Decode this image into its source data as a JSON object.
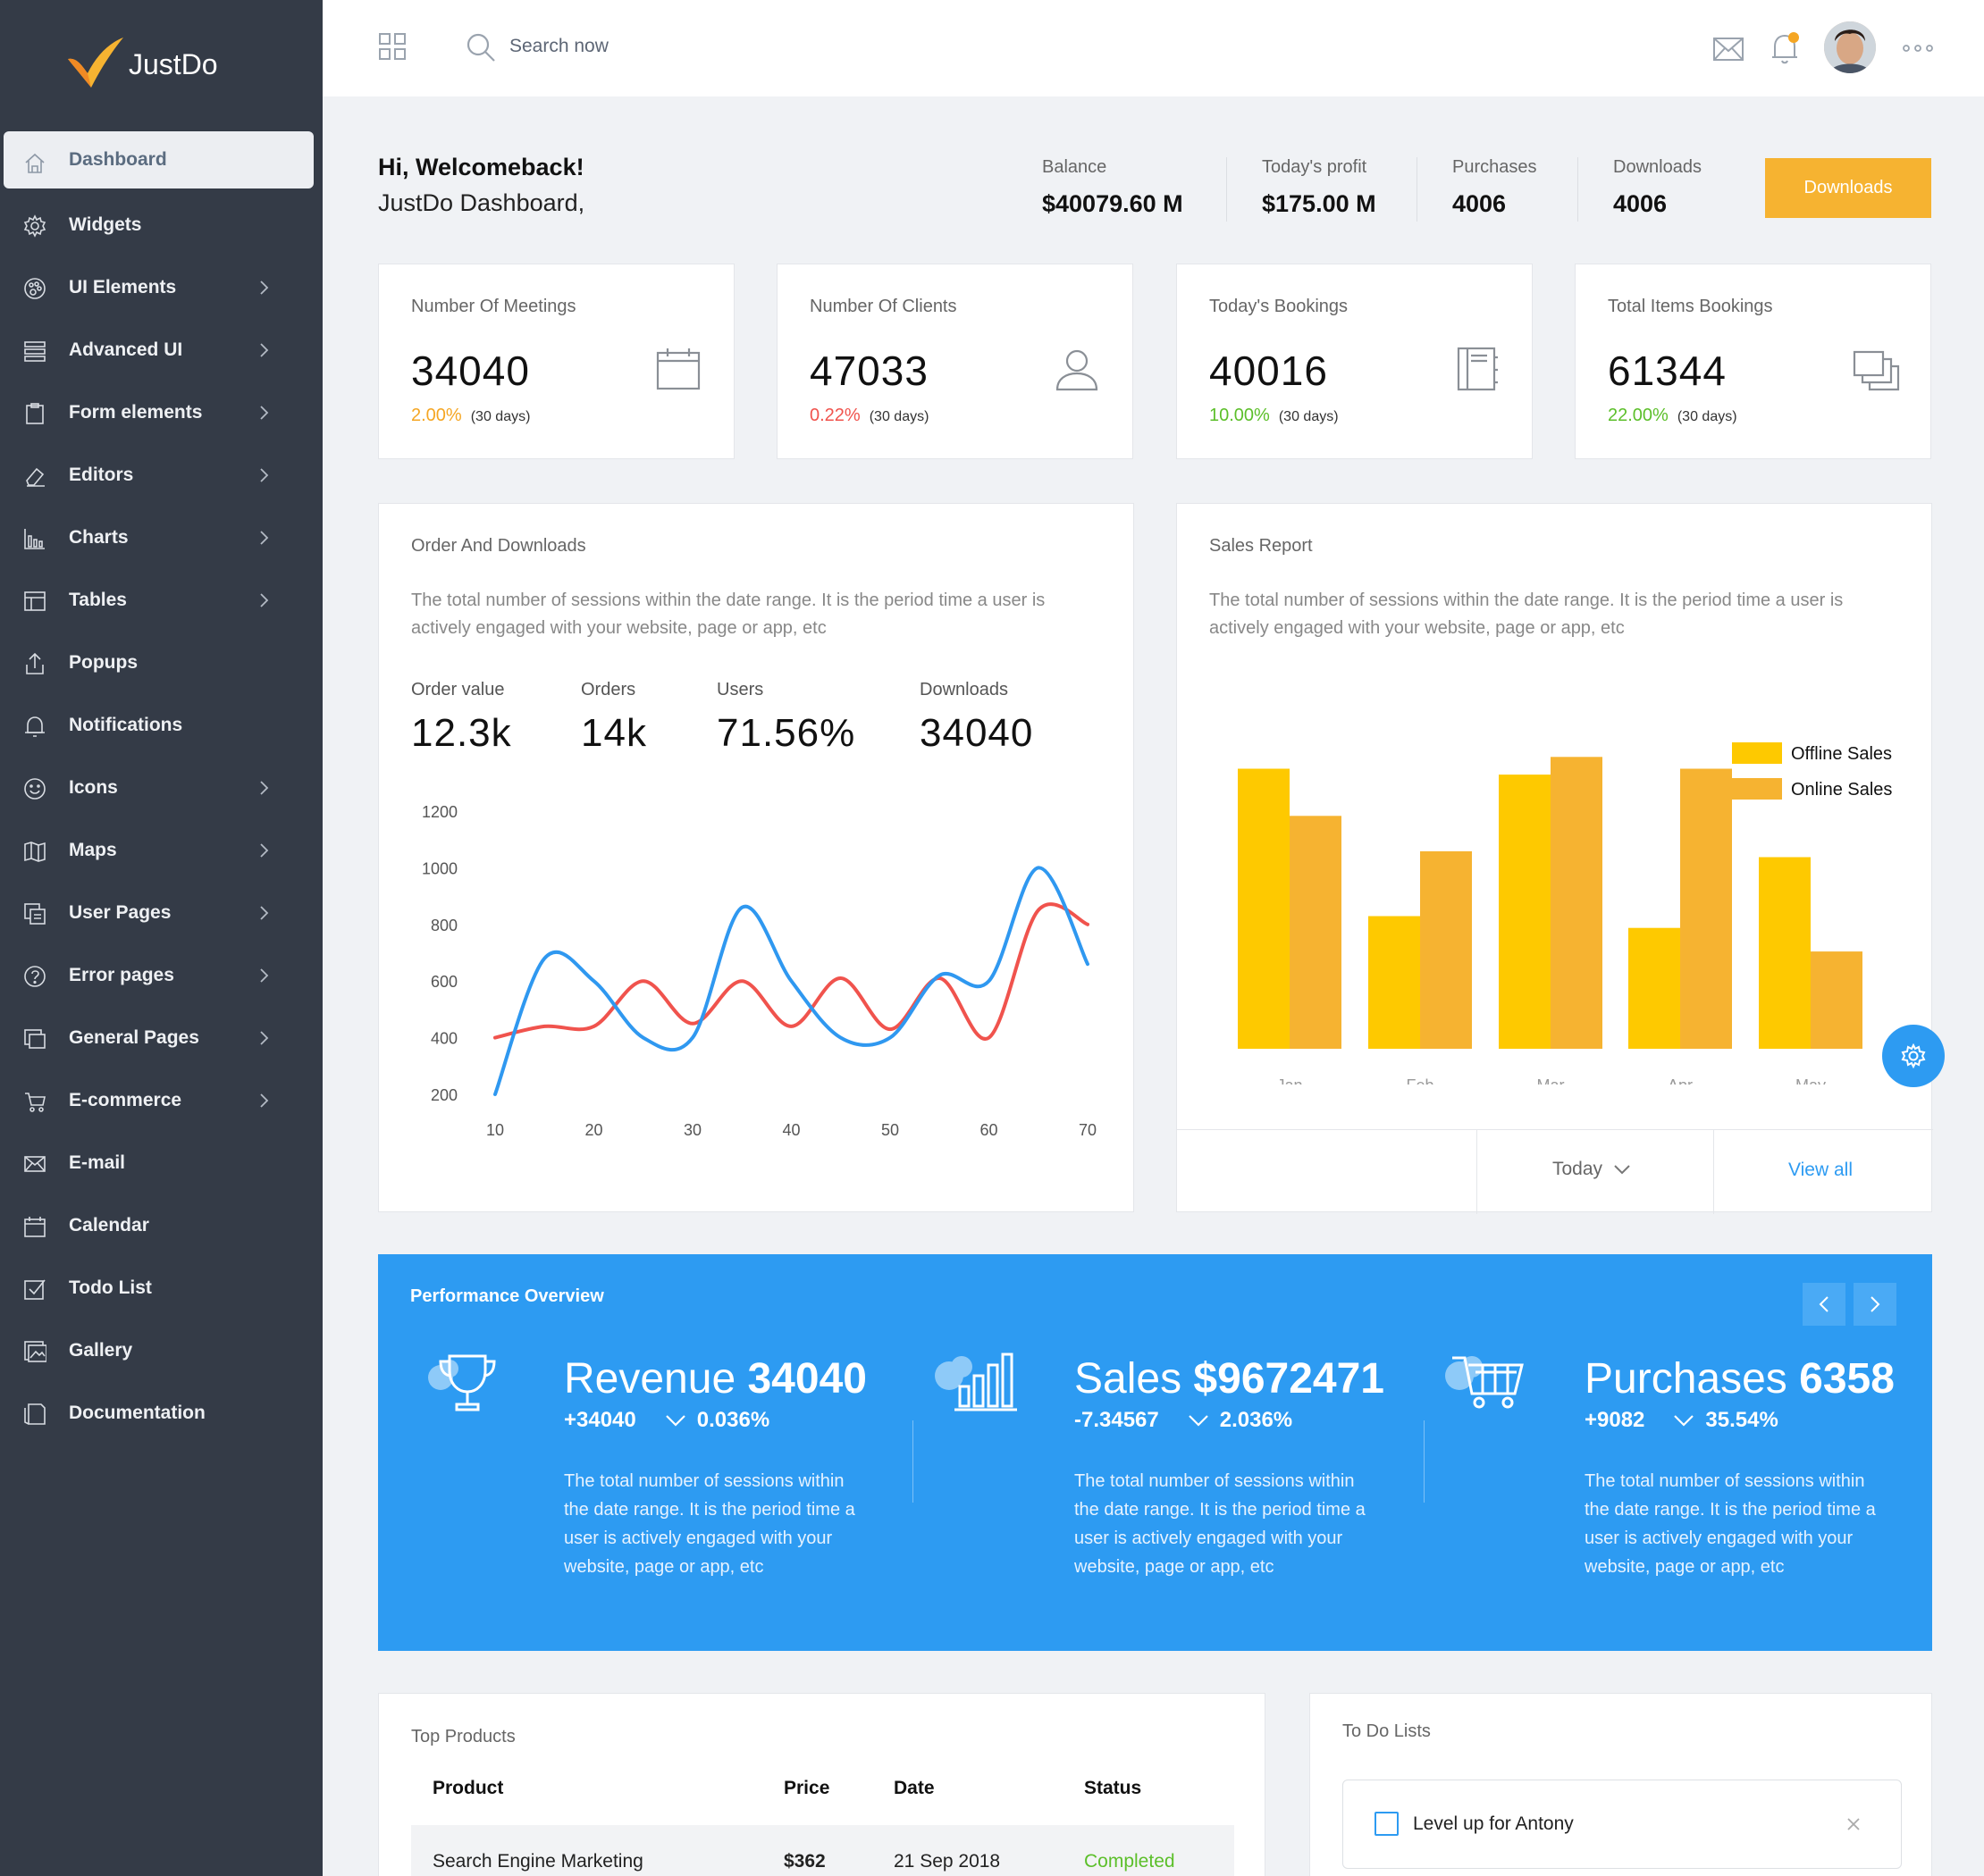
{
  "brand": {
    "name": "JustDo"
  },
  "sidebar": {
    "items": [
      {
        "label": "Dashboard",
        "icon": "home-icon",
        "active": true,
        "has_children": false
      },
      {
        "label": "Widgets",
        "icon": "gear-icon",
        "has_children": false
      },
      {
        "label": "UI Elements",
        "icon": "palette-icon",
        "has_children": true
      },
      {
        "label": "Advanced UI",
        "icon": "layers-icon",
        "has_children": true
      },
      {
        "label": "Form elements",
        "icon": "clipboard-icon",
        "has_children": true
      },
      {
        "label": "Editors",
        "icon": "eraser-icon",
        "has_children": true
      },
      {
        "label": "Charts",
        "icon": "bar-chart-icon",
        "has_children": true
      },
      {
        "label": "Tables",
        "icon": "table-icon",
        "has_children": true
      },
      {
        "label": "Popups",
        "icon": "upload-icon",
        "has_children": false
      },
      {
        "label": "Notifications",
        "icon": "bell-icon",
        "has_children": false
      },
      {
        "label": "Icons",
        "icon": "smile-icon",
        "has_children": true
      },
      {
        "label": "Maps",
        "icon": "map-icon",
        "has_children": true
      },
      {
        "label": "User Pages",
        "icon": "user-pages-icon",
        "has_children": true
      },
      {
        "label": "Error pages",
        "icon": "question-icon",
        "has_children": true
      },
      {
        "label": "General Pages",
        "icon": "pages-icon",
        "has_children": true
      },
      {
        "label": "E-commerce",
        "icon": "cart-icon",
        "has_children": true
      },
      {
        "label": "E-mail",
        "icon": "mail-icon",
        "has_children": false
      },
      {
        "label": "Calendar",
        "icon": "calendar-icon",
        "has_children": false
      },
      {
        "label": "Todo List",
        "icon": "checkbox-icon",
        "has_children": false
      },
      {
        "label": "Gallery",
        "icon": "image-icon",
        "has_children": false
      },
      {
        "label": "Documentation",
        "icon": "document-icon",
        "has_children": false
      }
    ]
  },
  "header": {
    "search_placeholder": "Search now",
    "icons": [
      "grid-icon",
      "search-icon",
      "mail-icon",
      "bell-icon",
      "avatar",
      "more-icon"
    ],
    "notification_color": "#f5a623"
  },
  "welcome": {
    "greeting": "Hi, Welcomeback!",
    "subtitle": "JustDo Dashboard,",
    "stats": [
      {
        "label": "Balance",
        "value": "$40079.60 M"
      },
      {
        "label": "Today's profit",
        "value": "$175.00 M"
      },
      {
        "label": "Purchases",
        "value": "4006"
      },
      {
        "label": "Downloads",
        "value": "4006"
      }
    ],
    "button_label": "Downloads",
    "button_color": "#f6b331"
  },
  "stat_cards": [
    {
      "title": "Number Of Meetings",
      "value": "34040",
      "change": "2.00%",
      "change_color": "#f5a623",
      "period": "(30 days)",
      "icon": "calendar-icon"
    },
    {
      "title": "Number Of Clients",
      "value": "47033",
      "change": "0.22%",
      "change_color": "#f0534d",
      "period": "(30 days)",
      "icon": "user-icon"
    },
    {
      "title": "Today's Bookings",
      "value": "40016",
      "change": "10.00%",
      "change_color": "#5cbf2a",
      "period": "(30 days)",
      "icon": "notebook-icon"
    },
    {
      "title": "Total Items Bookings",
      "value": "61344",
      "change": "22.00%",
      "change_color": "#5cbf2a",
      "period": "(30 days)",
      "icon": "copy-icon"
    }
  ],
  "orders": {
    "title": "Order And Downloads",
    "description": "The total number of sessions within the date range. It is the period time a user is actively engaged with your website, page or app, etc",
    "metrics": [
      {
        "label": "Order value",
        "value": "12.3k"
      },
      {
        "label": "Orders",
        "value": "14k"
      },
      {
        "label": "Users",
        "value": "71.56%"
      },
      {
        "label": "Downloads",
        "value": "34040"
      }
    ]
  },
  "sales": {
    "title": "Sales Report",
    "description": "The total number of sessions within the date range. It is the period time a user is actively engaged with your website, page or app, etc",
    "footer_today": "Today",
    "footer_view_all": "View all"
  },
  "chart_data": [
    {
      "type": "line",
      "x": [
        10,
        15,
        20,
        25,
        30,
        35,
        40,
        45,
        50,
        55,
        60,
        65,
        70
      ],
      "xlim": [
        10,
        70
      ],
      "ylim": [
        200,
        1200
      ],
      "xticks": [
        "10",
        "20",
        "30",
        "40",
        "50",
        "60",
        "70"
      ],
      "yticks": [
        "1200",
        "1000",
        "800",
        "600",
        "400",
        "200"
      ],
      "grid": false,
      "series": [
        {
          "color": "#2f98f0",
          "values": [
            200,
            680,
            600,
            400,
            400,
            860,
            600,
            400,
            400,
            620,
            600,
            1000,
            660
          ]
        },
        {
          "color": "#f0534d",
          "values": [
            400,
            440,
            440,
            600,
            450,
            600,
            440,
            610,
            430,
            610,
            400,
            850,
            800
          ]
        }
      ]
    },
    {
      "type": "bar",
      "categories": [
        "Jan",
        "Feb",
        "Mar",
        "Apr",
        "May"
      ],
      "ylim": [
        0,
        1000
      ],
      "legend": "top-right",
      "series": [
        {
          "name": "Offline Sales",
          "color": "#fec900",
          "values": [
            950,
            450,
            930,
            410,
            650
          ]
        },
        {
          "name": "Online Sales",
          "color": "#f6b331",
          "values": [
            790,
            670,
            990,
            950,
            330
          ]
        }
      ]
    }
  ],
  "performance": {
    "title": "Performance Overview",
    "background": "#2d9bf2",
    "items": [
      {
        "label": "Revenue",
        "value": "34040",
        "delta": "+34040",
        "pct": "0.036%",
        "icon": "trophy-icon",
        "description": "The total number of sessions within the date range. It is the period time a user is actively engaged with your website, page or app, etc"
      },
      {
        "label": "Sales",
        "value": "$9672471",
        "delta": "-7.34567",
        "pct": "2.036%",
        "icon": "bar-chart-icon",
        "description": "The total number of sessions within the date range. It is the period time a user is actively engaged with your website, page or app, etc"
      },
      {
        "label": "Purchases",
        "value": "6358",
        "delta": "+9082",
        "pct": "35.54%",
        "icon": "cart-icon",
        "description": "The total number of sessions within the date range. It is the period time a user is actively engaged with your website, page or app, etc"
      }
    ]
  },
  "top_products": {
    "title": "Top Products",
    "columns": [
      "Product",
      "Price",
      "Date",
      "Status"
    ],
    "rows": [
      {
        "product": "Search Engine Marketing",
        "price": "$362",
        "date": "21 Sep 2018",
        "status": "Completed",
        "status_color": "#5cbf2a"
      }
    ]
  },
  "todo": {
    "title": "To Do Lists",
    "items": [
      {
        "label": "Level up for Antony",
        "checked": false
      }
    ]
  }
}
